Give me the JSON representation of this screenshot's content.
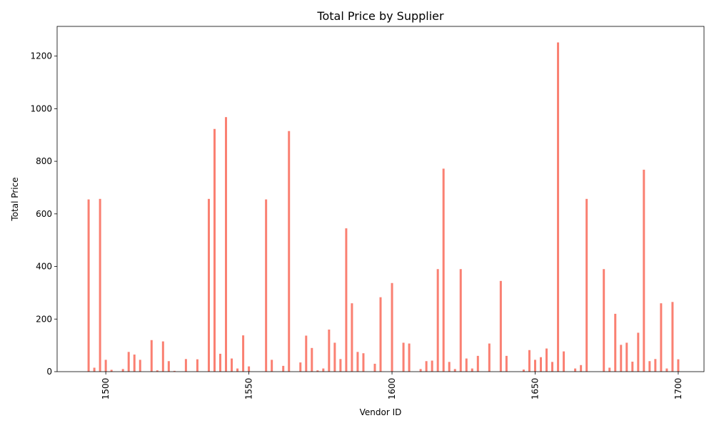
{
  "chart_data": {
    "type": "bar",
    "title": "Total Price by Supplier",
    "xlabel": "Vendor ID",
    "ylabel": "Total Price",
    "xlim": [
      1483,
      1709
    ],
    "ylim": [
      0,
      1313
    ],
    "xticks": [
      1500,
      1550,
      1600,
      1650,
      1700
    ],
    "yticks": [
      0,
      200,
      400,
      600,
      800,
      1000,
      1200
    ],
    "bar_color": "#fa8072",
    "grid": false,
    "x": [
      1494,
      1496,
      1498,
      1500,
      1502,
      1504,
      1506,
      1508,
      1510,
      1512,
      1514,
      1516,
      1518,
      1520,
      1522,
      1524,
      1526,
      1528,
      1530,
      1532,
      1534,
      1536,
      1538,
      1540,
      1542,
      1544,
      1546,
      1548,
      1550,
      1552,
      1554,
      1556,
      1558,
      1560,
      1562,
      1564,
      1566,
      1568,
      1570,
      1572,
      1574,
      1576,
      1578,
      1580,
      1582,
      1584,
      1586,
      1588,
      1590,
      1592,
      1594,
      1596,
      1598,
      1600,
      1602,
      1604,
      1606,
      1608,
      1610,
      1612,
      1614,
      1616,
      1618,
      1620,
      1622,
      1624,
      1626,
      1628,
      1630,
      1632,
      1634,
      1636,
      1638,
      1640,
      1642,
      1644,
      1646,
      1648,
      1650,
      1652,
      1654,
      1656,
      1658,
      1660,
      1662,
      1664,
      1666,
      1668,
      1670,
      1672,
      1674,
      1676,
      1678,
      1680,
      1682,
      1684,
      1686,
      1688,
      1690,
      1692,
      1694,
      1696,
      1698,
      1700
    ],
    "values": [
      655,
      15,
      657,
      45,
      7,
      0,
      10,
      75,
      65,
      45,
      0,
      120,
      5,
      115,
      40,
      3,
      0,
      48,
      0,
      47,
      0,
      657,
      923,
      68,
      968,
      50,
      12,
      138,
      20,
      0,
      0,
      655,
      45,
      0,
      22,
      915,
      0,
      35,
      137,
      90,
      5,
      12,
      160,
      110,
      48,
      545,
      260,
      75,
      70,
      0,
      30,
      283,
      0,
      337,
      0,
      110,
      107,
      0,
      10,
      40,
      42,
      390,
      772,
      37,
      10,
      390,
      50,
      12,
      60,
      0,
      107,
      0,
      345,
      60,
      0,
      0,
      8,
      82,
      45,
      55,
      88,
      37,
      1252,
      77,
      0,
      12,
      25,
      657,
      0,
      0,
      390,
      15,
      220,
      102,
      110,
      38,
      148,
      768,
      40,
      48,
      260,
      12,
      265,
      47
    ]
  }
}
